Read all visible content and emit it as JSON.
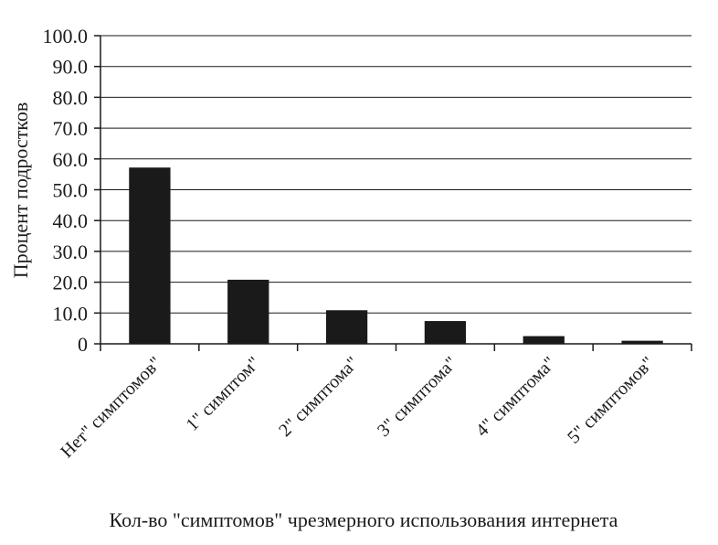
{
  "chart_data": {
    "type": "bar",
    "title": "",
    "xlabel": "Кол-во \"симптомов\" чрезмерного использования интернета",
    "ylabel": "Процент подростков",
    "ylim": [
      0,
      100
    ],
    "yticks": [
      "0",
      "10.0",
      "20.0",
      "30.0",
      "40.0",
      "50.0",
      "60.0",
      "70.0",
      "80.0",
      "90.0",
      "100.0"
    ],
    "ytick_values": [
      0,
      10,
      20,
      30,
      40,
      50,
      60,
      70,
      80,
      90,
      100
    ],
    "grid": true,
    "legend": "none",
    "bar_color": "#1a1a1a",
    "categories": [
      "Нет\" симптомов\"",
      "1\" симптом\"",
      "2\" симптома\"",
      "3\" симптома\"",
      "4\" симптома\"",
      "5\" симптомов\""
    ],
    "values": [
      57.2,
      20.8,
      10.9,
      7.4,
      2.5,
      1.0
    ]
  }
}
